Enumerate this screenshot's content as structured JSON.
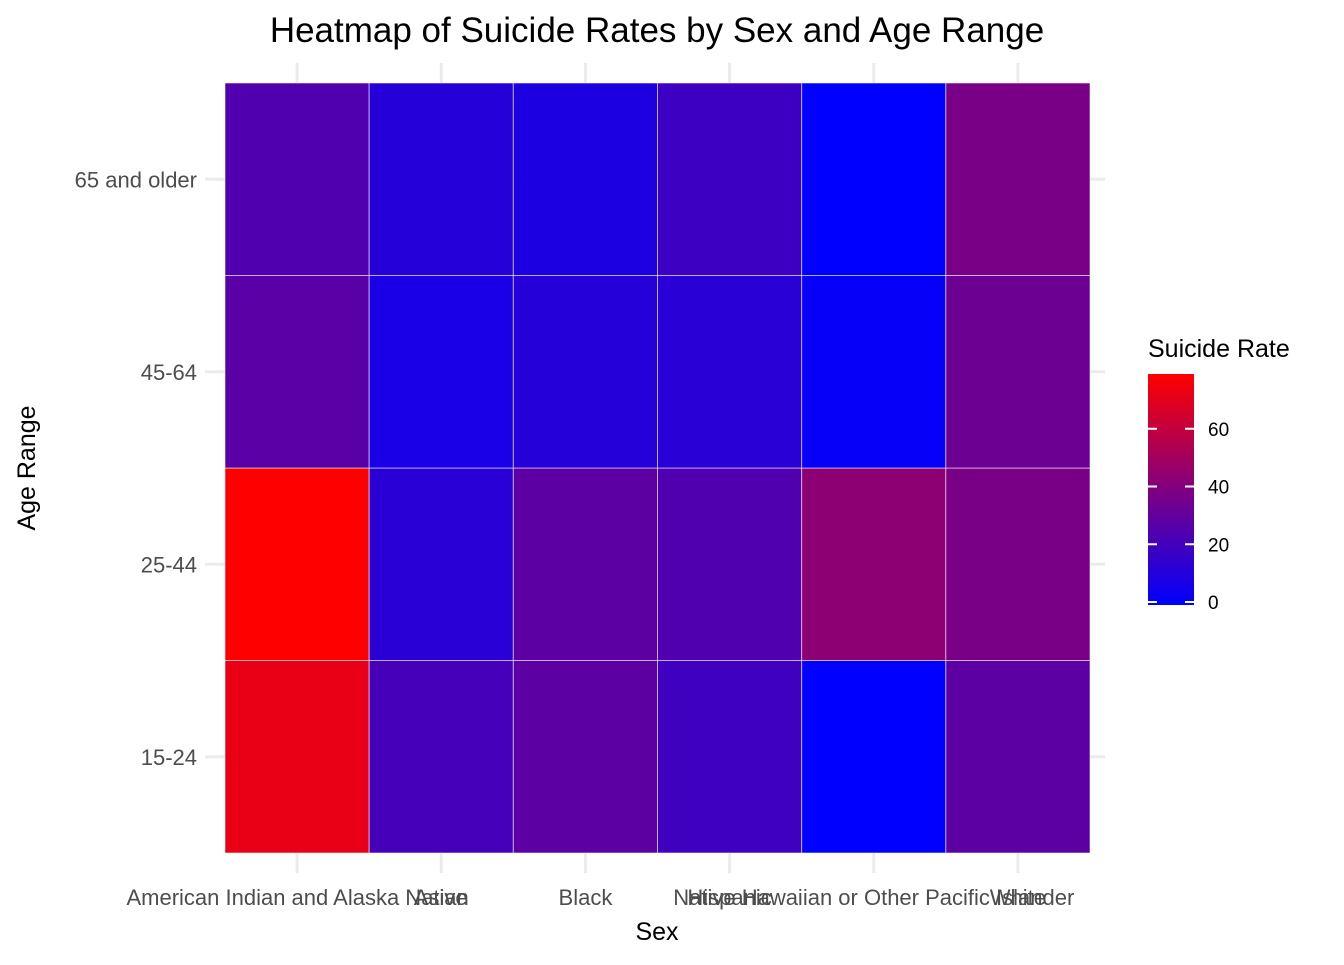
{
  "chart_data": {
    "type": "heatmap",
    "title": "Heatmap of Suicide Rates by Sex and Age Range",
    "xlabel": "Sex",
    "ylabel": "Age Range",
    "x_categories": [
      "American Indian and Alaska Native",
      "Asian",
      "Black",
      "Hispanic",
      "Native Hawaiian or Other Pacific Islander",
      "White"
    ],
    "y_categories": [
      "15-24",
      "25-44",
      "45-64",
      "65 and older"
    ],
    "values": [
      [
        73,
        22,
        29,
        20,
        0,
        29
      ],
      [
        80,
        13,
        29,
        25,
        44,
        38
      ],
      [
        28,
        8,
        12,
        13,
        2,
        34
      ],
      [
        25,
        12,
        9,
        19,
        0,
        38
      ]
    ],
    "legend": {
      "title": "Suicide Rate",
      "position": "right",
      "ticks": [
        0,
        20,
        40,
        60
      ],
      "min": 0,
      "max": 80
    },
    "colors": {
      "low": "#0000ff",
      "high": "#ff0000"
    },
    "grid": true
  }
}
